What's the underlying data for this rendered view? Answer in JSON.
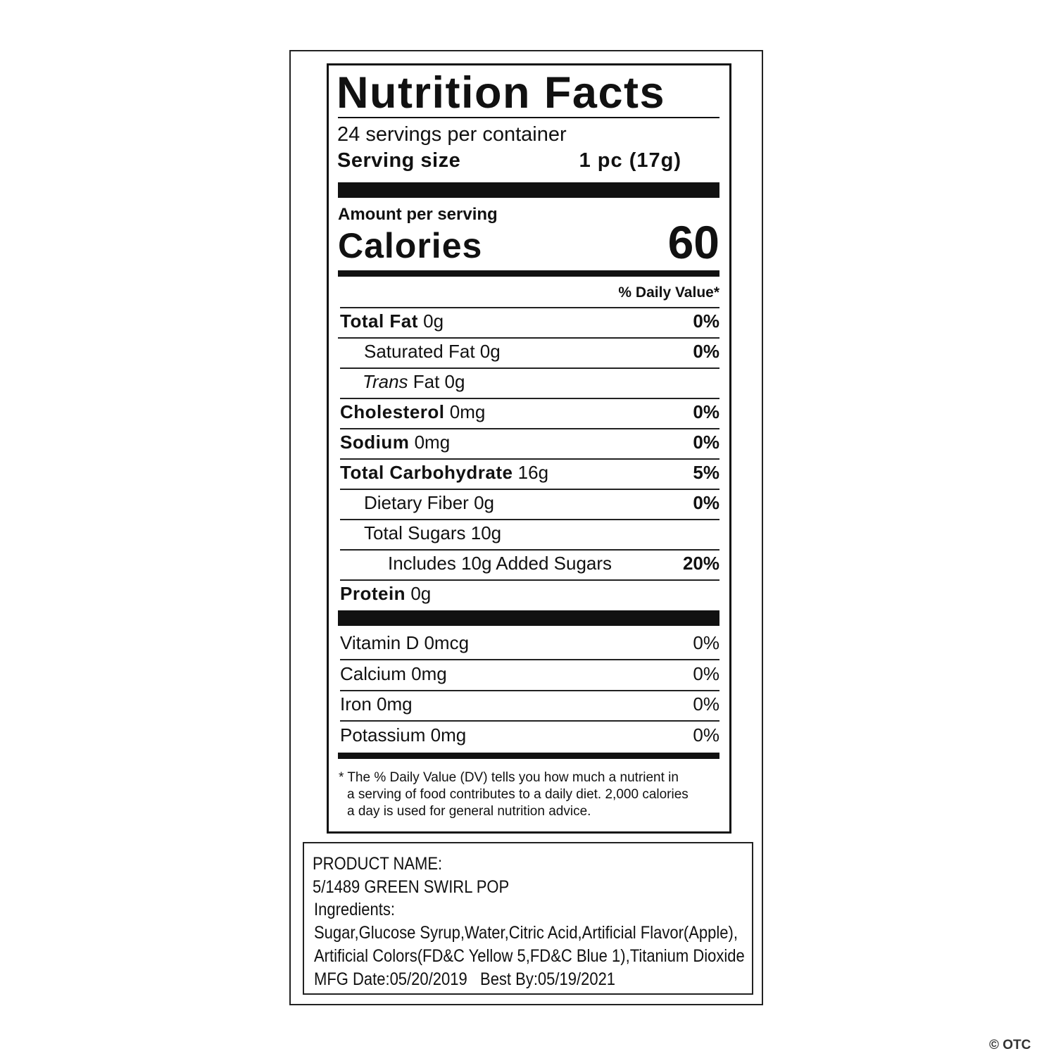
{
  "label": {
    "title": "Nutrition Facts",
    "servings": "24 servings per container",
    "serving_size_label": "Serving size",
    "serving_size_value": "1 pc (17g)",
    "amount_per_serving": "Amount per serving",
    "calories_label": "Calories",
    "calories_value": "60",
    "daily_value_header": "% Daily Value*",
    "nutrients": [
      {
        "name": "Total Fat",
        "amount": "0g",
        "dv": "0%"
      },
      {
        "name": "Saturated Fat",
        "amount": "0g",
        "dv": "0%"
      },
      {
        "name": "Trans",
        "amount": "Fat 0g",
        "dv": ""
      },
      {
        "name": "Cholesterol",
        "amount": "0mg",
        "dv": "0%"
      },
      {
        "name": "Sodium",
        "amount": "0mg",
        "dv": "0%"
      },
      {
        "name": "Total Carbohydrate",
        "amount": "16g",
        "dv": "5%"
      },
      {
        "name": "Dietary Fiber",
        "amount": "0g",
        "dv": "0%"
      },
      {
        "name": "Total Sugars",
        "amount": "10g",
        "dv": ""
      },
      {
        "name": "Includes 10g Added Sugars",
        "amount": "",
        "dv": "20%"
      },
      {
        "name": "Protein",
        "amount": "0g",
        "dv": ""
      }
    ],
    "vitamins": [
      {
        "name": "Vitamin D 0mcg",
        "dv": "0%"
      },
      {
        "name": "Calcium 0mg",
        "dv": "0%"
      },
      {
        "name": "Iron 0mg",
        "dv": "0%"
      },
      {
        "name": "Potassium 0mg",
        "dv": "0%"
      }
    ],
    "footnote": [
      "* The % Daily Value (DV) tells you how much a nutrient in",
      "a serving of food contributes to a daily diet. 2,000 calories",
      "a day is used for general nutrition advice."
    ]
  },
  "product": {
    "name_label": "PRODUCT NAME:",
    "name": "5/1489 GREEN SWIRL POP",
    "ingredients_label": "Ingredients:",
    "ingredients_line1": "Sugar,Glucose Syrup,Water,Citric Acid,Artificial Flavor(Apple),",
    "ingredients_line2": "Artificial Colors(FD&C Yellow 5,FD&C Blue 1),Titanium Dioxide",
    "dates": "MFG Date:05/20/2019   Best By:05/19/2021"
  },
  "watermark": "© OTC"
}
